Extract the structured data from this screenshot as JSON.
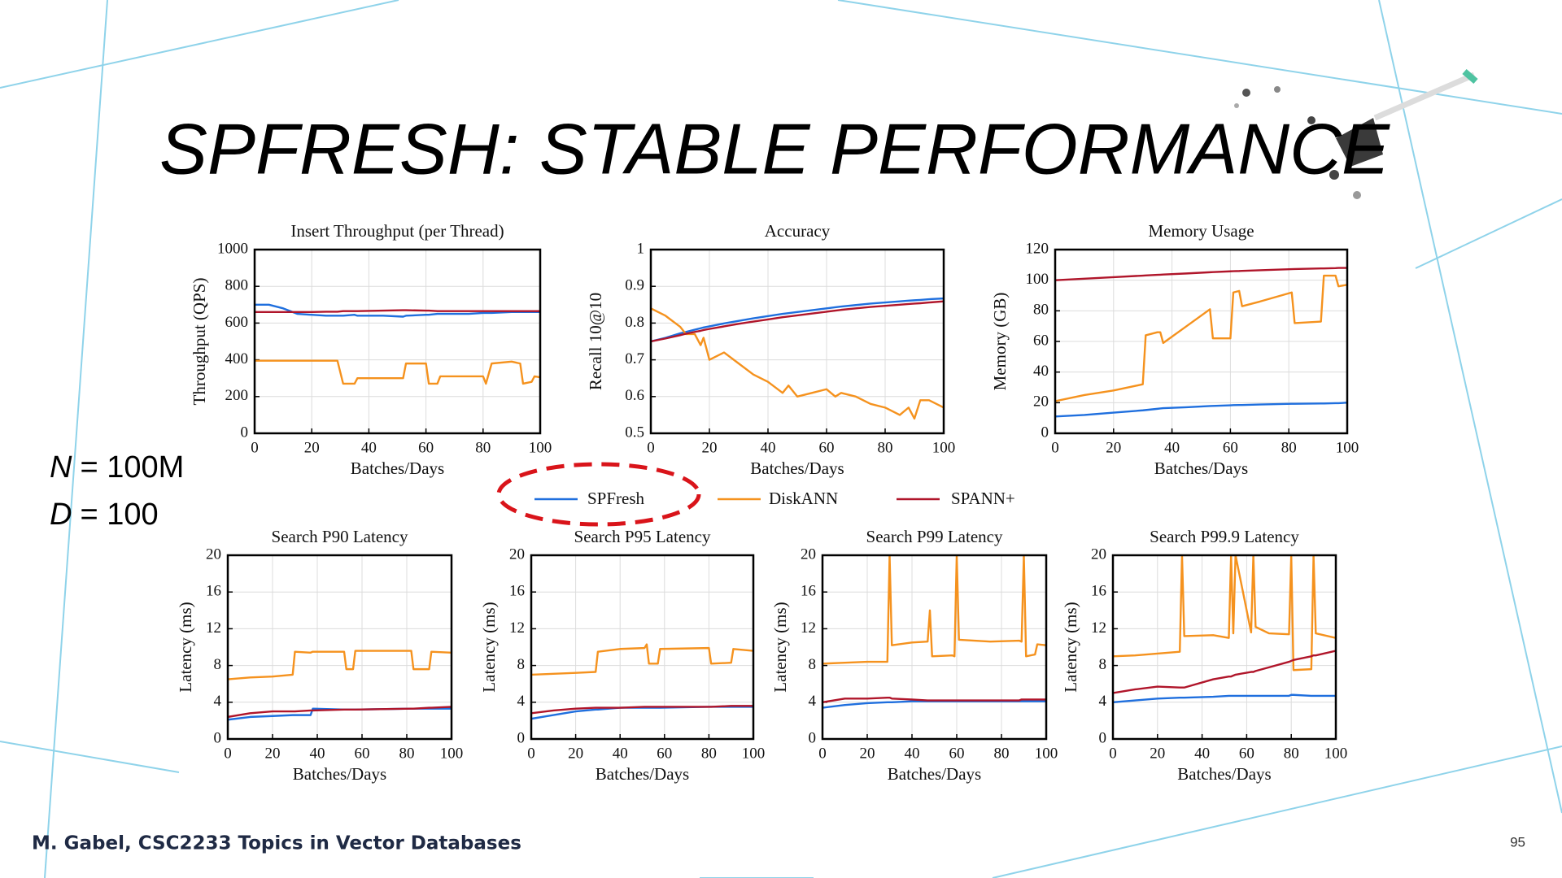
{
  "slide_title": "SPFRESH: STABLE PERFORMANCE",
  "annotations": [
    {
      "symbol": "N",
      "text": "= 100M"
    },
    {
      "symbol": "D",
      "text": "= 100"
    }
  ],
  "footer": "M. Gabel, CSC2233 Topics in Vector Databases",
  "page_number": "95",
  "chart_data": [
    {
      "type": "line",
      "title": "Insert Throughput (per Thread)",
      "xlabel": "Batches/Days",
      "ylabel": "Throughput (QPS)",
      "x": [
        0,
        5,
        10,
        15,
        20,
        25,
        29,
        31,
        35,
        36,
        45,
        52,
        53,
        60,
        61,
        64,
        65,
        75,
        80,
        81,
        83,
        90,
        93,
        94,
        97,
        98,
        100
      ],
      "xlim": [
        0,
        100
      ],
      "xticks": [
        0,
        20,
        40,
        60,
        80,
        100
      ],
      "ylim": [
        0,
        1000
      ],
      "yticks": [
        0,
        200,
        400,
        600,
        800,
        1000
      ],
      "grid": true,
      "series": [
        {
          "name": "SPFresh",
          "color": "#1f6fde",
          "values": [
            700,
            700,
            680,
            650,
            645,
            640,
            640,
            640,
            645,
            640,
            640,
            635,
            640,
            645,
            645,
            650,
            650,
            650,
            655,
            655,
            655,
            660,
            660,
            660,
            660,
            660,
            660
          ]
        },
        {
          "name": "DiskANN",
          "color": "#f5921e",
          "values": [
            395,
            395,
            395,
            395,
            395,
            395,
            395,
            270,
            270,
            300,
            300,
            300,
            380,
            380,
            270,
            270,
            310,
            310,
            310,
            270,
            380,
            390,
            380,
            270,
            280,
            310,
            305
          ]
        },
        {
          "name": "SPANN+",
          "color": "#b0152a",
          "values": [
            660,
            660,
            660,
            660,
            660,
            662,
            662,
            665,
            665,
            665,
            668,
            670,
            670,
            668,
            668,
            665,
            665,
            665,
            665,
            665,
            665,
            665,
            665,
            665,
            665,
            665,
            665
          ]
        }
      ]
    },
    {
      "type": "line",
      "title": "Accuracy",
      "xlabel": "Batches/Days",
      "ylabel": "Recall 10@10",
      "x": [
        0,
        5,
        10,
        12,
        15,
        17,
        18,
        20,
        25,
        30,
        35,
        40,
        45,
        47,
        50,
        55,
        60,
        63,
        65,
        70,
        75,
        80,
        85,
        88,
        90,
        92,
        95,
        100
      ],
      "xlim": [
        0,
        100
      ],
      "xticks": [
        0,
        20,
        40,
        60,
        80,
        100
      ],
      "ylim": [
        0.5,
        1
      ],
      "yticks": [
        0.5,
        0.6,
        0.7,
        0.8,
        0.9,
        1
      ],
      "grid": true,
      "series": [
        {
          "color": "#1f6fde",
          "values": [
            0.75,
            0.76,
            0.772,
            0.776,
            0.782,
            0.786,
            0.788,
            0.791,
            0.799,
            0.806,
            0.813,
            0.819,
            0.825,
            0.827,
            0.83,
            0.835,
            0.84,
            0.843,
            0.845,
            0.849,
            0.853,
            0.856,
            0.859,
            0.861,
            0.862,
            0.863,
            0.865,
            0.867
          ]
        },
        {
          "color": "#f5921e",
          "values": [
            0.84,
            0.82,
            0.79,
            0.77,
            0.77,
            0.74,
            0.76,
            0.7,
            0.72,
            0.69,
            0.66,
            0.64,
            0.61,
            0.63,
            0.6,
            0.61,
            0.62,
            0.6,
            0.61,
            0.6,
            0.58,
            0.57,
            0.55,
            0.57,
            0.54,
            0.59,
            0.59,
            0.57
          ]
        },
        {
          "color": "#b0152a",
          "values": [
            0.75,
            0.758,
            0.767,
            0.771,
            0.776,
            0.779,
            0.781,
            0.784,
            0.791,
            0.798,
            0.804,
            0.81,
            0.816,
            0.818,
            0.821,
            0.826,
            0.831,
            0.834,
            0.836,
            0.84,
            0.844,
            0.847,
            0.85,
            0.852,
            0.853,
            0.854,
            0.856,
            0.859
          ]
        }
      ]
    },
    {
      "type": "line",
      "title": "Memory Usage",
      "xlabel": "Batches/Days",
      "ylabel": "Memory (GB)",
      "x": [
        0,
        10,
        20,
        30,
        31,
        35,
        36,
        37,
        45,
        53,
        54,
        60,
        61,
        63,
        64,
        70,
        81,
        82,
        91,
        92,
        96,
        97,
        100
      ],
      "xlim": [
        0,
        100
      ],
      "xticks": [
        0,
        20,
        40,
        60,
        80,
        100
      ],
      "ylim": [
        0,
        120
      ],
      "yticks": [
        0,
        20,
        40,
        60,
        80,
        100,
        120
      ],
      "grid": true,
      "series": [
        {
          "color": "#1f6fde",
          "values": [
            11,
            12,
            13.5,
            15,
            15.2,
            16,
            16.2,
            16.4,
            17,
            17.8,
            17.9,
            18.3,
            18.4,
            18.5,
            18.5,
            18.8,
            19.3,
            19.3,
            19.5,
            19.5,
            19.7,
            19.7,
            20
          ]
        },
        {
          "color": "#f5921e",
          "values": [
            21,
            25,
            28,
            32,
            64,
            66,
            66,
            59,
            70,
            81,
            62,
            62,
            92,
            93,
            83,
            86,
            92,
            72,
            73,
            103,
            103,
            96,
            97
          ]
        },
        {
          "color": "#b0152a",
          "values": [
            100,
            101,
            102,
            103,
            103.1,
            103.5,
            103.6,
            103.7,
            104.4,
            105.2,
            105.3,
            105.8,
            105.9,
            106,
            106.1,
            106.5,
            107.2,
            107.3,
            107.7,
            107.7,
            107.9,
            108,
            108
          ]
        }
      ]
    },
    {
      "type": "line",
      "title": "Search P90 Latency",
      "xlabel": "Batches/Days",
      "ylabel": "Latency (ms)",
      "x": [
        0,
        10,
        20,
        29,
        30,
        37,
        38,
        52,
        53,
        56,
        57,
        82,
        83,
        90,
        91,
        100
      ],
      "xlim": [
        0,
        100
      ],
      "xticks": [
        0,
        20,
        40,
        60,
        80,
        100
      ],
      "ylim": [
        0,
        20
      ],
      "yticks": [
        0,
        4,
        8,
        12,
        16,
        20
      ],
      "grid": true,
      "series": [
        {
          "color": "#1f6fde",
          "values": [
            2.1,
            2.4,
            2.5,
            2.6,
            2.6,
            2.6,
            3.3,
            3.2,
            3.2,
            3.2,
            3.2,
            3.3,
            3.3,
            3.3,
            3.3,
            3.3
          ]
        },
        {
          "color": "#f5921e",
          "values": [
            6.5,
            6.7,
            6.8,
            7.0,
            9.5,
            9.4,
            9.5,
            9.5,
            7.6,
            7.6,
            9.6,
            9.6,
            7.6,
            7.6,
            9.5,
            9.4
          ]
        },
        {
          "color": "#b0152a",
          "values": [
            2.4,
            2.8,
            3.0,
            3.0,
            3.0,
            3.1,
            3.1,
            3.2,
            3.2,
            3.2,
            3.2,
            3.3,
            3.3,
            3.4,
            3.4,
            3.5
          ]
        }
      ]
    },
    {
      "type": "line",
      "title": "Search P95 Latency",
      "xlabel": "Batches/Days",
      "ylabel": "Latency (ms)",
      "x": [
        0,
        10,
        20,
        29,
        30,
        40,
        51,
        52,
        53,
        57,
        58,
        80,
        81,
        90,
        91,
        100
      ],
      "xlim": [
        0,
        100
      ],
      "xticks": [
        0,
        20,
        40,
        60,
        80,
        100
      ],
      "ylim": [
        0,
        20
      ],
      "yticks": [
        0,
        4,
        8,
        12,
        16,
        20
      ],
      "grid": true,
      "series": [
        {
          "color": "#1f6fde",
          "values": [
            2.2,
            2.6,
            3.0,
            3.2,
            3.2,
            3.4,
            3.4,
            3.4,
            3.4,
            3.4,
            3.4,
            3.5,
            3.5,
            3.5,
            3.5,
            3.5
          ]
        },
        {
          "color": "#f5921e",
          "values": [
            7.0,
            7.1,
            7.2,
            7.3,
            9.5,
            9.8,
            9.9,
            10.3,
            8.2,
            8.2,
            9.8,
            9.9,
            8.2,
            8.3,
            9.8,
            9.6
          ]
        },
        {
          "color": "#b0152a",
          "values": [
            2.8,
            3.1,
            3.3,
            3.4,
            3.4,
            3.4,
            3.5,
            3.5,
            3.5,
            3.5,
            3.5,
            3.5,
            3.5,
            3.6,
            3.6,
            3.6
          ]
        }
      ]
    },
    {
      "type": "line",
      "title": "Search P99 Latency",
      "xlabel": "Batches/Days",
      "ylabel": "Latency (ms)",
      "x": [
        0,
        10,
        20,
        29,
        30,
        31,
        40,
        47,
        48,
        49,
        58,
        59,
        60,
        61,
        75,
        88,
        89,
        90,
        91,
        95,
        96,
        100
      ],
      "xlim": [
        0,
        100
      ],
      "xticks": [
        0,
        20,
        40,
        60,
        80,
        100
      ],
      "ylim": [
        0,
        20
      ],
      "yticks": [
        0,
        4,
        8,
        12,
        16,
        20
      ],
      "grid": true,
      "series": [
        {
          "color": "#1f6fde",
          "values": [
            3.4,
            3.7,
            3.9,
            4.0,
            4.0,
            4.0,
            4.1,
            4.1,
            4.1,
            4.1,
            4.1,
            4.1,
            4.1,
            4.1,
            4.1,
            4.1,
            4.1,
            4.1,
            4.1,
            4.1,
            4.1,
            4.1
          ]
        },
        {
          "color": "#f5921e",
          "values": [
            8.2,
            8.3,
            8.4,
            8.4,
            20,
            10.2,
            10.5,
            10.6,
            14,
            9.0,
            9.1,
            9.0,
            20,
            10.8,
            10.6,
            10.7,
            10.6,
            20,
            9.0,
            9.2,
            10.3,
            10.2
          ]
        },
        {
          "color": "#b0152a",
          "values": [
            4.0,
            4.4,
            4.4,
            4.5,
            4.5,
            4.4,
            4.3,
            4.2,
            4.2,
            4.2,
            4.2,
            4.2,
            4.2,
            4.2,
            4.2,
            4.2,
            4.3,
            4.3,
            4.3,
            4.3,
            4.3,
            4.3
          ]
        }
      ]
    },
    {
      "type": "line",
      "title": "Search P99.9 Latency",
      "xlabel": "Batches/Days",
      "ylabel": "Latency (ms)",
      "x": [
        0,
        10,
        20,
        30,
        31,
        32,
        45,
        52,
        53,
        54,
        55,
        62,
        63,
        64,
        70,
        79,
        80,
        81,
        89,
        90,
        91,
        100
      ],
      "xlim": [
        0,
        100
      ],
      "xticks": [
        0,
        20,
        40,
        60,
        80,
        100
      ],
      "ylim": [
        0,
        20
      ],
      "yticks": [
        0,
        4,
        8,
        12,
        16,
        20
      ],
      "grid": true,
      "series": [
        {
          "color": "#1f6fde",
          "values": [
            4.0,
            4.2,
            4.4,
            4.5,
            4.5,
            4.5,
            4.6,
            4.7,
            4.7,
            4.7,
            4.7,
            4.7,
            4.7,
            4.7,
            4.7,
            4.7,
            4.8,
            4.8,
            4.7,
            4.7,
            4.7,
            4.7
          ]
        },
        {
          "color": "#f5921e",
          "values": [
            9.0,
            9.1,
            9.3,
            9.5,
            20,
            11.2,
            11.3,
            11.0,
            20,
            11.5,
            20,
            11.6,
            20,
            12.2,
            11.5,
            11.4,
            20,
            7.5,
            7.6,
            20,
            11.5,
            11.0
          ]
        },
        {
          "color": "#b0152a",
          "values": [
            5.0,
            5.4,
            5.7,
            5.6,
            5.6,
            5.6,
            6.5,
            6.8,
            6.8,
            6.9,
            7.0,
            7.3,
            7.3,
            7.4,
            7.8,
            8.4,
            8.5,
            8.6,
            9.0,
            9.1,
            9.1,
            9.6
          ]
        }
      ]
    }
  ]
}
